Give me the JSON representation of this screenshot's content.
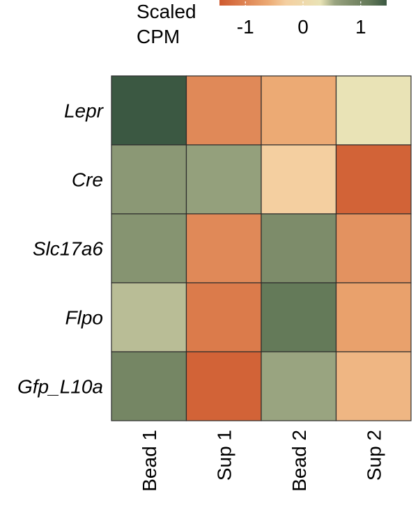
{
  "chart_data": {
    "type": "heatmap",
    "title": "",
    "rows": [
      "Lepr",
      "Cre",
      "Slc17a6",
      "Flpo",
      "Gfp_L10a"
    ],
    "columns": [
      "Bead 1",
      "Sup 1",
      "Bead 2",
      "Sup 2"
    ],
    "values": [
      [
        1.45,
        -0.95,
        -0.6,
        0.3
      ],
      [
        0.7,
        0.6,
        -0.3,
        -1.35
      ],
      [
        0.75,
        -0.95,
        0.85,
        -0.85
      ],
      [
        0.45,
        -1.1,
        1.15,
        -0.7
      ],
      [
        0.95,
        -1.35,
        0.55,
        -0.5
      ]
    ],
    "legend": {
      "title_lines": [
        "Scaled",
        "CPM"
      ],
      "ticks": [
        {
          "value": -1,
          "label": "-1"
        },
        {
          "value": 0,
          "label": "0"
        },
        {
          "value": 1,
          "label": "1"
        }
      ],
      "range": [
        -1.45,
        1.45
      ]
    },
    "color_scale": {
      "stops": [
        {
          "value": -1.45,
          "color": "#CF5A2F"
        },
        {
          "value": -0.6,
          "color": "#ECAA74"
        },
        {
          "value": -0.3,
          "color": "#F4CFA0"
        },
        {
          "value": 0.3,
          "color": "#E9E3B6"
        },
        {
          "value": 0.55,
          "color": "#99A480"
        },
        {
          "value": 0.85,
          "color": "#7D8C6A"
        },
        {
          "value": 1.15,
          "color": "#647A59"
        },
        {
          "value": 1.45,
          "color": "#3B5842"
        }
      ]
    }
  }
}
